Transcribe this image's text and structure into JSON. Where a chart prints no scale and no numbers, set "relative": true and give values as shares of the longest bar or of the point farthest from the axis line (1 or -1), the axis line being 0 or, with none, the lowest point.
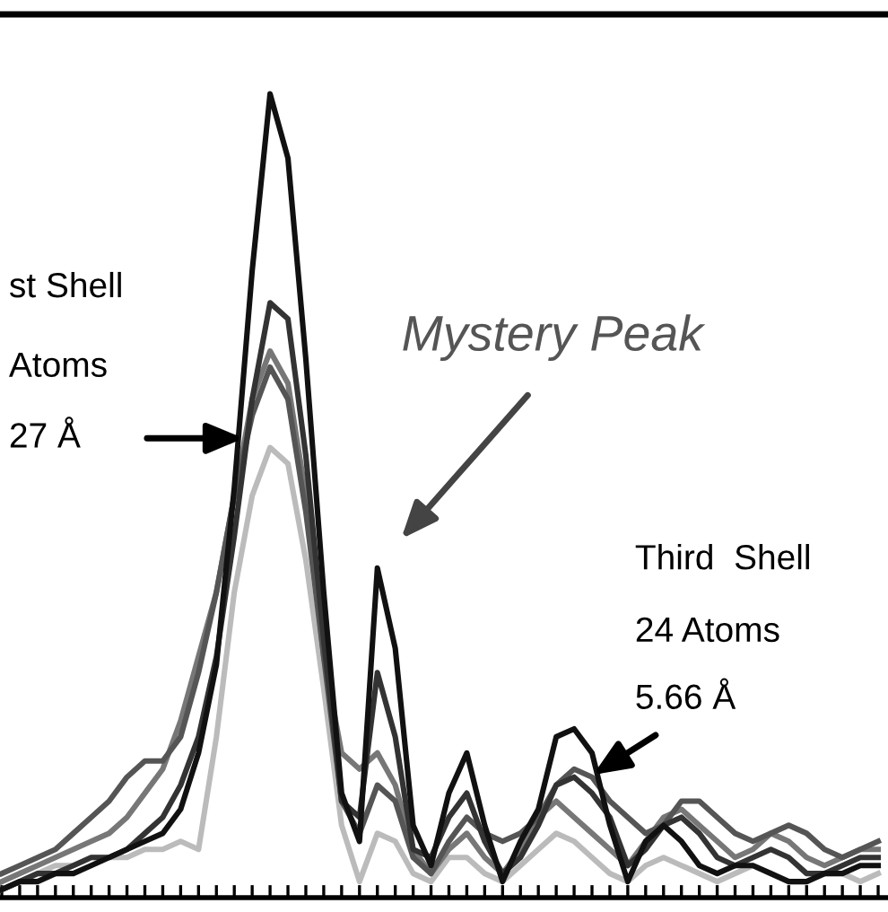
{
  "chart_data": {
    "type": "line",
    "relative": true,
    "grid": false,
    "legend": false,
    "marker": "none",
    "line_style": "solid",
    "categories": [
      null,
      null,
      null,
      null,
      null,
      null,
      null,
      null,
      null,
      null,
      null,
      null,
      null,
      null,
      null,
      null,
      null,
      null,
      null,
      null,
      null,
      null,
      null,
      null,
      null,
      null,
      null,
      null,
      null,
      null,
      null,
      null,
      null,
      null,
      null,
      null,
      null,
      null,
      null,
      null,
      null,
      null,
      null,
      null,
      null,
      null,
      null,
      null,
      null,
      null
    ],
    "series": [
      {
        "color": "#bbbbbb",
        "values": [
          0.01,
          0.02,
          0.03,
          0.04,
          0.04,
          0.05,
          0.05,
          0.05,
          0.06,
          0.06,
          0.07,
          0.06,
          0.2,
          0.38,
          0.5,
          0.56,
          0.54,
          0.42,
          0.26,
          0.09,
          0.02,
          0.08,
          0.07,
          0.03,
          0.02,
          0.05,
          0.05,
          0.03,
          0.02,
          0.04,
          0.06,
          0.08,
          0.07,
          0.05,
          0.03,
          0.02,
          0.04,
          0.05,
          0.04,
          0.03,
          0.02,
          0.03,
          0.04,
          0.03,
          0.02,
          0.02,
          0.03,
          0.03,
          0.02,
          0.03
        ]
      },
      {
        "color": "#777777",
        "values": [
          0.02,
          0.03,
          0.04,
          0.05,
          0.06,
          0.07,
          0.08,
          0.1,
          0.13,
          0.16,
          0.22,
          0.3,
          0.38,
          0.5,
          0.62,
          0.68,
          0.64,
          0.5,
          0.3,
          0.18,
          0.16,
          0.18,
          0.14,
          0.06,
          0.03,
          0.06,
          0.08,
          0.05,
          0.03,
          0.06,
          0.1,
          0.12,
          0.1,
          0.08,
          0.06,
          0.04,
          0.07,
          0.1,
          0.11,
          0.09,
          0.07,
          0.05,
          0.06,
          0.08,
          0.07,
          0.05,
          0.04,
          0.05,
          0.06,
          0.06
        ]
      },
      {
        "color": "#555555",
        "values": [
          0.03,
          0.04,
          0.05,
          0.06,
          0.08,
          0.1,
          0.12,
          0.15,
          0.17,
          0.17,
          0.2,
          0.28,
          0.38,
          0.5,
          0.6,
          0.66,
          0.62,
          0.48,
          0.3,
          0.12,
          0.08,
          0.14,
          0.12,
          0.05,
          0.03,
          0.07,
          0.1,
          0.08,
          0.07,
          0.08,
          0.1,
          0.14,
          0.16,
          0.15,
          0.12,
          0.1,
          0.08,
          0.09,
          0.12,
          0.12,
          0.1,
          0.08,
          0.07,
          0.08,
          0.09,
          0.08,
          0.06,
          0.05,
          0.06,
          0.07
        ]
      },
      {
        "color": "#333333",
        "values": [
          0.01,
          0.02,
          0.03,
          0.03,
          0.04,
          0.05,
          0.05,
          0.06,
          0.08,
          0.1,
          0.14,
          0.2,
          0.3,
          0.45,
          0.62,
          0.74,
          0.72,
          0.55,
          0.32,
          0.12,
          0.1,
          0.28,
          0.2,
          0.06,
          0.05,
          0.1,
          0.13,
          0.07,
          0.03,
          0.05,
          0.09,
          0.14,
          0.15,
          0.13,
          0.1,
          0.04,
          0.06,
          0.09,
          0.1,
          0.08,
          0.05,
          0.04,
          0.05,
          0.06,
          0.05,
          0.03,
          0.03,
          0.04,
          0.05,
          0.05
        ]
      },
      {
        "color": "#111111",
        "values": [
          0.01,
          0.02,
          0.02,
          0.03,
          0.03,
          0.04,
          0.05,
          0.06,
          0.07,
          0.08,
          0.11,
          0.18,
          0.29,
          0.51,
          0.78,
          1.0,
          0.92,
          0.67,
          0.38,
          0.13,
          0.07,
          0.41,
          0.31,
          0.09,
          0.04,
          0.13,
          0.18,
          0.09,
          0.02,
          0.07,
          0.11,
          0.2,
          0.21,
          0.18,
          0.09,
          0.02,
          0.07,
          0.09,
          0.07,
          0.04,
          0.03,
          0.04,
          0.04,
          0.03,
          0.02,
          0.02,
          0.03,
          0.03,
          0.04,
          0.04
        ]
      }
    ],
    "annotations": [
      "st Shell",
      "Atoms",
      "27 Å",
      "Mystery Peak",
      "Third  Shell",
      "24 Atoms",
      "5.66 Å"
    ]
  }
}
